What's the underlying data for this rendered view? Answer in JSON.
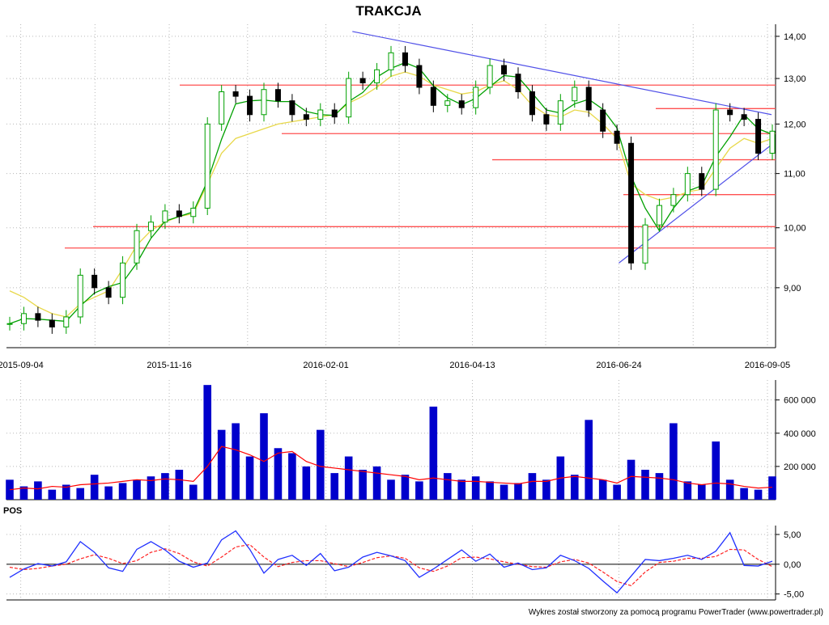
{
  "chart_data": [
    {
      "type": "candlestick",
      "title": "TRAKCJA",
      "x_tick_labels": [
        "2015-09-04",
        "2015-11-16",
        "2016-02-01",
        "2016-04-13",
        "2016-06-24",
        "2016-09-05"
      ],
      "y_tick_labels": [
        "9,00",
        "10,00",
        "11,00",
        "12,00",
        "13,00",
        "14,00"
      ],
      "y_ticks": [
        9,
        10,
        11,
        12,
        13,
        14
      ],
      "ylim": [
        8.1,
        14.3
      ],
      "grid": true,
      "series": [
        {
          "values": [
            8.45,
            8.6,
            8.5,
            8.4,
            8.55,
            9.2,
            9.0,
            8.85,
            9.4,
            9.95,
            10.1,
            10.3,
            10.2,
            10.35,
            12.0,
            12.7,
            12.6,
            12.2,
            12.75,
            12.5,
            12.2,
            12.1,
            12.3,
            12.15,
            13.0,
            12.9,
            13.2,
            13.6,
            13.3,
            12.8,
            12.4,
            12.5,
            12.35,
            12.8,
            13.3,
            13.1,
            12.7,
            12.2,
            12.0,
            12.5,
            12.8,
            12.3,
            11.85,
            11.6,
            9.4,
            10.05,
            10.4,
            10.6,
            11.0,
            10.7,
            12.3,
            12.2,
            12.1,
            11.4,
            11.85
          ]
        },
        {
          "values": [
            8.95,
            8.85,
            8.7,
            8.6,
            8.55,
            8.75,
            8.85,
            8.95,
            9.3,
            9.7,
            9.95,
            10.1,
            10.2,
            10.25,
            10.8,
            11.4,
            11.7,
            11.8,
            11.9,
            12.0,
            12.05,
            12.1,
            12.15,
            12.2,
            12.45,
            12.6,
            12.8,
            13.05,
            13.15,
            13.05,
            12.85,
            12.75,
            12.65,
            12.7,
            12.85,
            12.95,
            12.75,
            12.4,
            12.2,
            12.15,
            12.3,
            12.25,
            12.0,
            11.7,
            10.8,
            10.6,
            10.5,
            10.55,
            10.65,
            10.7,
            11.1,
            11.5,
            11.7,
            11.6,
            11.7
          ]
        }
      ],
      "horizontal_levels": [
        12.85,
        12.33,
        11.8,
        11.27,
        10.6,
        10.02,
        9.65
      ],
      "trendlines": [
        {
          "from": [
            "2016-02-14",
            14.12
          ],
          "to": [
            "2016-09-07",
            12.2
          ]
        },
        {
          "from": [
            "2016-06-24",
            9.4
          ],
          "to": [
            "2016-09-08",
            11.6
          ]
        }
      ]
    },
    {
      "type": "bar",
      "y_tick_labels": [
        "200 000",
        "400 000",
        "600 000"
      ],
      "y_ticks": [
        200000,
        400000,
        600000
      ],
      "ylim": [
        0,
        720000
      ],
      "series": [
        {
          "values": [
            120000,
            80000,
            110000,
            60000,
            90000,
            70000,
            150000,
            80000,
            100000,
            120000,
            140000,
            160000,
            180000,
            90000,
            690000,
            420000,
            460000,
            260000,
            520000,
            310000,
            280000,
            200000,
            420000,
            160000,
            260000,
            180000,
            200000,
            120000,
            150000,
            110000,
            560000,
            160000,
            120000,
            140000,
            110000,
            90000,
            100000,
            160000,
            120000,
            260000,
            150000,
            480000,
            120000,
            90000,
            240000,
            180000,
            160000,
            460000,
            110000,
            90000,
            350000,
            120000,
            70000,
            60000,
            140000
          ]
        },
        {
          "values": [
            60000,
            70000,
            65000,
            80000,
            75000,
            90000,
            95000,
            100000,
            110000,
            120000,
            115000,
            125000,
            120000,
            110000,
            200000,
            320000,
            300000,
            270000,
            230000,
            280000,
            290000,
            230000,
            200000,
            190000,
            180000,
            170000,
            160000,
            150000,
            140000,
            120000,
            130000,
            120000,
            110000,
            110000,
            105000,
            100000,
            95000,
            110000,
            110000,
            130000,
            140000,
            130000,
            120000,
            100000,
            140000,
            135000,
            130000,
            120000,
            100000,
            90000,
            100000,
            95000,
            80000,
            70000,
            75000
          ]
        }
      ]
    },
    {
      "type": "line",
      "indicator": "POS",
      "y_tick_labels": [
        "-5,00",
        "0,00",
        "5,00"
      ],
      "y_ticks": [
        -5,
        0,
        5
      ],
      "ylim": [
        -6,
        6.5
      ],
      "series": [
        {
          "values": [
            -2.2,
            -0.8,
            0.1,
            -0.3,
            0.4,
            3.8,
            2.0,
            -0.6,
            -1.2,
            2.5,
            3.8,
            2.4,
            0.5,
            -0.5,
            0.2,
            4.1,
            5.6,
            2.5,
            -1.5,
            0.8,
            1.5,
            -0.2,
            1.8,
            -1.1,
            -0.5,
            1.2,
            2.0,
            1.4,
            0.6,
            -2.2,
            -0.8,
            0.8,
            2.4,
            0.5,
            1.7,
            -0.5,
            0.2,
            -0.9,
            -0.6,
            1.5,
            0.6,
            -0.7,
            -2.8,
            -4.8,
            -2.0,
            0.8,
            0.6,
            1.0,
            1.5,
            0.8,
            2.2,
            5.3,
            -0.2,
            -0.3,
            0.5
          ]
        },
        {
          "values": [
            -0.5,
            -0.9,
            -0.7,
            -0.3,
            0.0,
            0.9,
            1.6,
            1.0,
            0.1,
            0.6,
            2.0,
            2.6,
            1.8,
            0.4,
            -0.3,
            1.2,
            2.9,
            3.3,
            1.2,
            -0.4,
            0.3,
            0.6,
            0.6,
            0.1,
            -0.4,
            0.3,
            1.1,
            1.4,
            1.0,
            -0.6,
            -1.2,
            -0.3,
            1.1,
            1.2,
            0.9,
            0.4,
            0.0,
            -0.4,
            -0.5,
            0.4,
            0.8,
            0.2,
            -1.3,
            -2.9,
            -3.6,
            -1.3,
            0.3,
            0.5,
            1.0,
            1.0,
            1.3,
            2.5,
            2.4,
            0.8,
            -0.4
          ]
        }
      ]
    }
  ],
  "footer": "Wykres został stworzony za pomocą programu PowerTrader (www.powertrader.pl)",
  "colors": {
    "bullish": "#00a000",
    "bearish": "#000000",
    "volume_bar": "#0000cc",
    "volume_avg": "#ff0000",
    "ma_fast": "#00a000",
    "ma_slow": "#e8d84a",
    "level_line": "#ff5050",
    "trendline": "#5050e8",
    "pos_line": "#2030ff",
    "pos_signal": "#ff2020",
    "grid": "#b8b8b8"
  }
}
